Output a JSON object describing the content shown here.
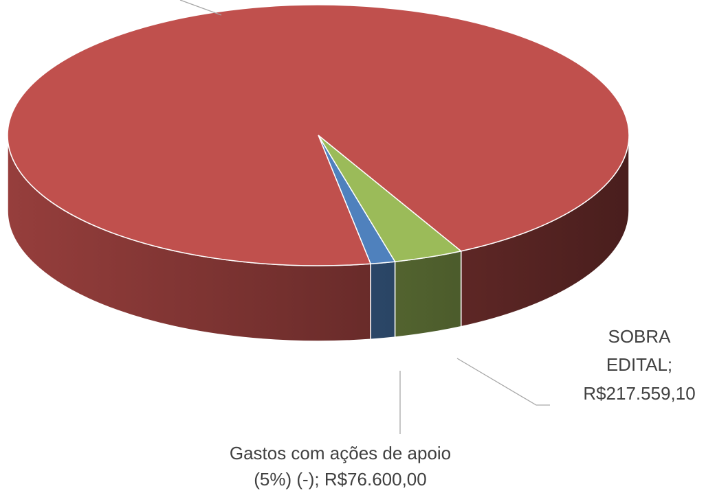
{
  "chart_data": {
    "type": "pie3d",
    "categories": [
      "Gastos com ações de apoio (5%) (-);",
      "SOBRA EDITAL;",
      null
    ],
    "values": [
      76600,
      217559.1,
      5700000
    ],
    "value_labels": [
      "R$76.600,00",
      "R$217.559,10",
      null
    ],
    "colors": [
      "#4f81bd",
      "#9bbb59",
      "#c0504d"
    ]
  }
}
